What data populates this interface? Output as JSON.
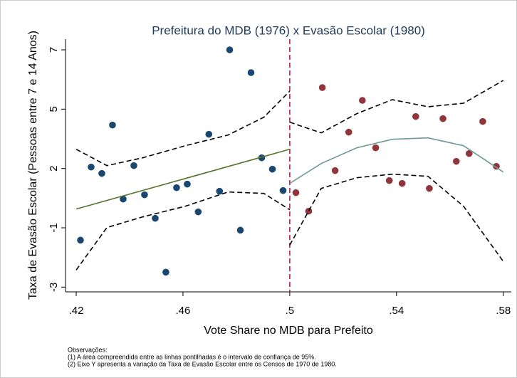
{
  "chart_data": {
    "type": "scatter",
    "title": "Prefeitura do MDB (1976) x Evasão Escolar (1980)",
    "x_label": "Vote Share no MDB para Prefeito",
    "y_label": "Taxa de Evasão Escolar (Pessoas entre 7 e 14 Anos)",
    "notes": [
      "Observações:",
      "(1) A área compreendida entre as linhas pontilhadas é o intervalo de confiança de 95%.",
      "(2) Eixo Y apresenta a variação da Taxa de Evasão Escolar entre os Censos de 1970 de 1980."
    ],
    "xlim": [
      0.416,
      0.583
    ],
    "ylim": [
      -3.2,
      7.45
    ],
    "xticks": [
      {
        "value": 0.42,
        "label": ".42"
      },
      {
        "value": 0.46,
        "label": ".46"
      },
      {
        "value": 0.5,
        "label": ".5"
      },
      {
        "value": 0.54,
        "label": ".54"
      },
      {
        "value": 0.58,
        "label": ".58"
      }
    ],
    "yticks": [
      7,
      {
        "value": 4.5,
        "label": "5"
      },
      2,
      {
        "value": -0.5,
        "label": "-1"
      },
      -3
    ],
    "cutoff": 0.5,
    "cutoff_color": "#c0305a",
    "series": [
      {
        "mode": "markers",
        "color": "#1a476f",
        "x": [
          0.4216,
          0.4256,
          0.4296,
          0.4336,
          0.4376,
          0.4416,
          0.4456,
          0.4496,
          0.4536,
          0.4576,
          0.4616,
          0.4657,
          0.4697,
          0.4737,
          0.4775,
          0.4815,
          0.4855,
          0.4895,
          0.4935,
          0.4975
        ],
        "values": [
          -1.02,
          2.06,
          1.79,
          3.83,
          0.71,
          2.12,
          0.89,
          -0.1,
          -2.37,
          1.19,
          1.34,
          0.17,
          3.44,
          1.04,
          7.0,
          -0.6,
          6.04,
          2.45,
          1.97,
          1.07
        ]
      },
      {
        "mode": "markers",
        "color": "#90353b",
        "x": [
          0.5023,
          0.5071,
          0.5122,
          0.517,
          0.5221,
          0.5272,
          0.5322,
          0.5373,
          0.5421,
          0.5472,
          0.5523,
          0.5574,
          0.5624,
          0.5672,
          0.5723,
          0.5774
        ],
        "values": [
          0.98,
          0.2,
          5.41,
          1.91,
          3.53,
          4.87,
          2.87,
          1.49,
          1.37,
          4.19,
          1.16,
          4.1,
          2.3,
          2.63,
          3.98,
          2.09
        ]
      },
      {
        "mode": "line",
        "color": "#55752f",
        "dash": false,
        "x": [
          0.42,
          0.5
        ],
        "values": [
          0.29,
          2.81
        ]
      },
      {
        "mode": "line",
        "color": "#6e9a95",
        "dash": false,
        "x": [
          0.5,
          0.5118,
          0.5251,
          0.5384,
          0.5518,
          0.5651,
          0.58
        ],
        "values": [
          1.37,
          2.21,
          2.87,
          3.23,
          3.29,
          2.96,
          1.85
        ]
      },
      {
        "mode": "line",
        "color": "#000000",
        "dash": true,
        "x": [
          0.42,
          0.4315,
          0.4449,
          0.4609,
          0.4769,
          0.4903,
          0.5
        ],
        "values": [
          2.81,
          2.12,
          2.45,
          2.96,
          3.41,
          4.16,
          5.26
        ]
      },
      {
        "mode": "line",
        "color": "#000000",
        "dash": true,
        "x": [
          0.42,
          0.4315,
          0.4449,
          0.4609,
          0.4769,
          0.4903,
          0.5
        ],
        "values": [
          -2.28,
          -0.49,
          -0.04,
          0.41,
          1.01,
          0.95,
          0.26
        ]
      },
      {
        "mode": "line",
        "color": "#000000",
        "dash": true,
        "x": [
          0.5,
          0.5118,
          0.5251,
          0.5384,
          0.5518,
          0.5651,
          0.58
        ],
        "values": [
          3.95,
          3.5,
          4.31,
          4.9,
          4.6,
          4.75,
          5.71
        ]
      },
      {
        "mode": "line",
        "color": "#000000",
        "dash": true,
        "x": [
          0.5,
          0.5118,
          0.5251,
          0.5384,
          0.5518,
          0.5651,
          0.58
        ],
        "values": [
          -1.23,
          1.16,
          1.61,
          1.76,
          1.67,
          0.41,
          -1.92
        ]
      }
    ]
  }
}
